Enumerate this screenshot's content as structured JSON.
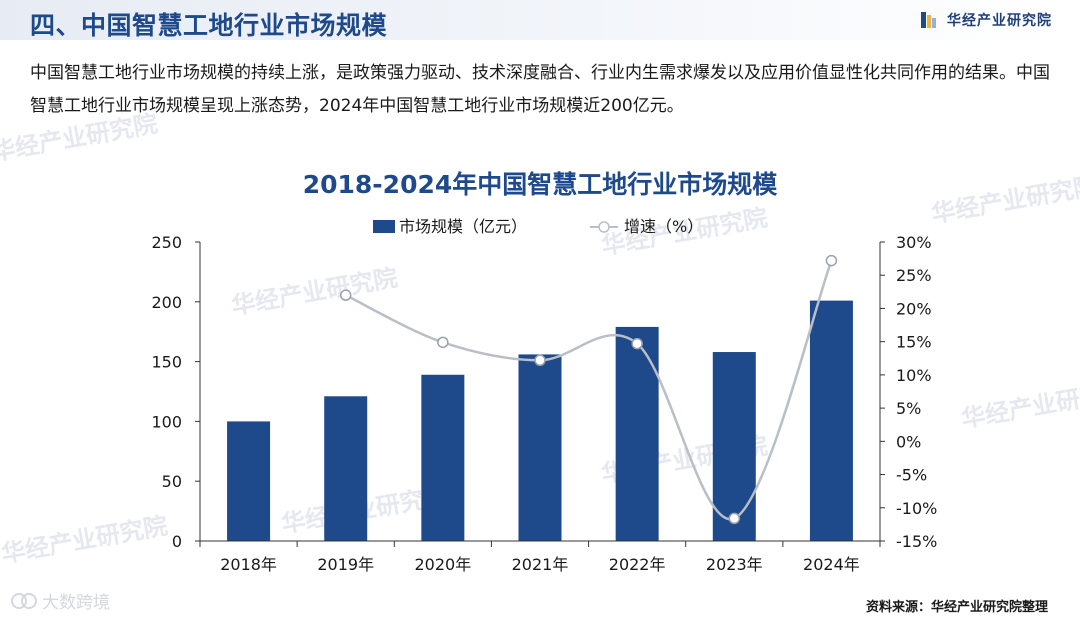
{
  "header": {
    "section_title": "四、中国智慧工地行业市场规模",
    "brand_name": "华经产业研究院"
  },
  "intro": {
    "paragraph": "中国智慧工地行业市场规模的持续上涨，是政策强力驱动、技术深度融合、行业内生需求爆发以及应用价值显性化共同作用的结果。中国智慧工地行业市场规模呈现上涨态势，2024年中国智慧工地行业市场规模近200亿元。"
  },
  "watermark_text": "华经产业研究院",
  "chart_data": {
    "type": "bar",
    "title": "2018-2024年中国智慧工地行业市场规模",
    "categories": [
      "2018年",
      "2019年",
      "2020年",
      "2021年",
      "2022年",
      "2023年",
      "2024年"
    ],
    "series": [
      {
        "name": "市场规模（亿元）",
        "type": "bar",
        "axis": "left",
        "color": "#1e4a8c",
        "values": [
          100,
          121,
          139,
          156,
          179,
          158,
          201
        ]
      },
      {
        "name": "增速（%）",
        "type": "line",
        "axis": "right",
        "color": "#b9bec7",
        "values": [
          null,
          22.0,
          14.9,
          12.2,
          14.7,
          -11.6,
          27.2
        ]
      }
    ],
    "left_axis": {
      "min": 0,
      "max": 250,
      "ticks": [
        "0",
        "50",
        "100",
        "150",
        "200",
        "250"
      ]
    },
    "right_axis": {
      "min": -15,
      "max": 30,
      "ticks": [
        "-15%",
        "-10%",
        "-5%",
        "0%",
        "5%",
        "10%",
        "15%",
        "20%",
        "25%",
        "30%"
      ]
    },
    "legend_position": "top-center",
    "grid": false
  },
  "footer": {
    "source_note": "资料来源：华经产业研究院整理",
    "platform_name": "大数跨境"
  }
}
